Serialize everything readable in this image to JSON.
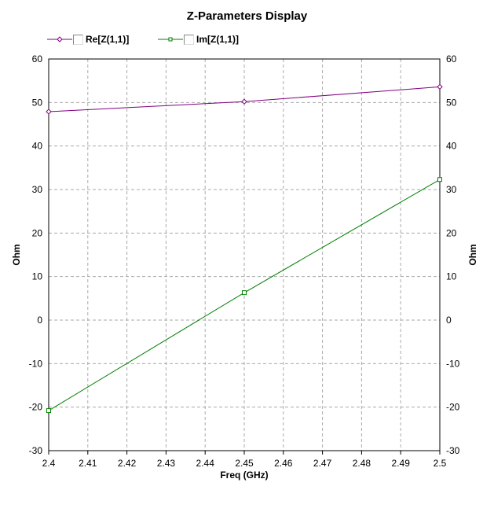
{
  "chart_data": {
    "type": "line",
    "title": "Z-Parameters Display",
    "xlabel": "Freq (GHz)",
    "ylabel": "Ohm",
    "ylabel_right": "Ohm",
    "xlim": [
      2.4,
      2.5
    ],
    "ylim": [
      -30,
      60
    ],
    "grid": true,
    "legend_position": "top-left",
    "x_ticks": [
      "2.4",
      "2.41",
      "2.42",
      "2.43",
      "2.44",
      "2.45",
      "2.46",
      "2.47",
      "2.48",
      "2.49",
      "2.5"
    ],
    "y_ticks": [
      "-30",
      "-20",
      "-10",
      "0",
      "10",
      "20",
      "30",
      "40",
      "50",
      "60"
    ],
    "x": [
      2.4,
      2.45,
      2.5
    ],
    "series": [
      {
        "name": "Re[Z(1,1)]",
        "color": "#800080",
        "marker": "diamond",
        "values": [
          47.9,
          50.2,
          53.6
        ]
      },
      {
        "name": "Im[Z(1,1)]",
        "color": "#008000",
        "marker": "square",
        "values": [
          -20.8,
          6.3,
          32.3
        ]
      }
    ]
  }
}
